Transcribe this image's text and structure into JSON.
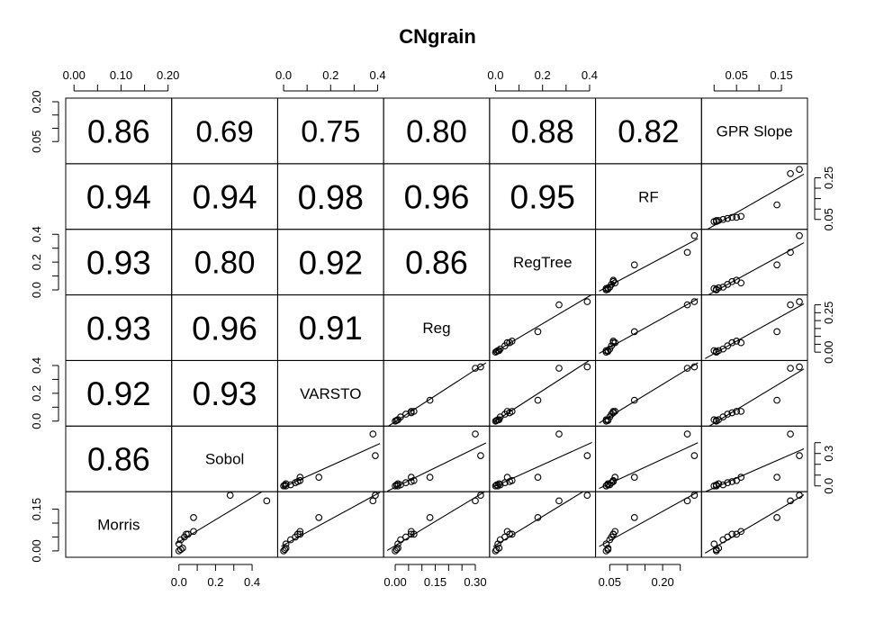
{
  "chart_data": {
    "type": "scatter-matrix",
    "title": "CNgrain",
    "variables": [
      "Morris",
      "Sobol",
      "VARSTO",
      "Reg",
      "RegTree",
      "RF",
      "GPR Slope"
    ],
    "correlations": [
      [
        null,
        null,
        null,
        null,
        null,
        null,
        null
      ],
      [
        0.86,
        null,
        null,
        null,
        null,
        null,
        null
      ],
      [
        0.92,
        0.93,
        null,
        null,
        null,
        null,
        null
      ],
      [
        0.93,
        0.96,
        0.91,
        null,
        null,
        null,
        null
      ],
      [
        0.93,
        0.8,
        0.92,
        0.86,
        null,
        null,
        null
      ],
      [
        0.94,
        0.94,
        0.98,
        0.96,
        0.95,
        null,
        null
      ],
      [
        0.86,
        0.69,
        0.75,
        0.8,
        0.88,
        0.82,
        null
      ]
    ],
    "correlation_labels": [
      [
        "",
        "",
        "",
        "",
        "",
        "",
        ""
      ],
      [
        "0.86",
        "",
        "",
        "",
        "",
        "",
        ""
      ],
      [
        "0.92",
        "0.93",
        "",
        "",
        "",
        "",
        ""
      ],
      [
        "0.93",
        "0.96",
        "0.91",
        "",
        "",
        "",
        ""
      ],
      [
        "0.93",
        "0.80",
        "0.92",
        "0.86",
        "",
        "",
        ""
      ],
      [
        "0.94",
        "0.94",
        "0.98",
        "0.96",
        "0.95",
        "",
        ""
      ],
      [
        "0.86",
        "0.69",
        "0.75",
        "0.80",
        "0.88",
        "0.82",
        ""
      ]
    ],
    "ranges": [
      [
        -0.01,
        0.2
      ],
      [
        -0.02,
        0.52
      ],
      [
        -0.01,
        0.41
      ],
      [
        -0.03,
        0.34
      ],
      [
        -0.01,
        0.41
      ],
      [
        0.02,
        0.3
      ],
      [
        -0.02,
        0.2
      ]
    ],
    "observations": [
      [
        0.0,
        0.0,
        0.0,
        0.0,
        0.0,
        0.04,
        0.005
      ],
      [
        0.005,
        0.01,
        0.005,
        0.005,
        0.005,
        0.045,
        0.005
      ],
      [
        0.01,
        0.02,
        0.01,
        0.01,
        0.015,
        0.045,
        0.01
      ],
      [
        0.025,
        0.0,
        0.01,
        0.01,
        0.01,
        0.04,
        0.0
      ],
      [
        0.04,
        0.01,
        0.03,
        0.02,
        0.02,
        0.05,
        0.02
      ],
      [
        0.05,
        0.03,
        0.05,
        0.04,
        0.04,
        0.055,
        0.03
      ],
      [
        0.06,
        0.04,
        0.06,
        0.06,
        0.06,
        0.06,
        0.04
      ],
      [
        0.06,
        0.05,
        0.07,
        0.07,
        0.07,
        0.06,
        0.05
      ],
      [
        0.07,
        0.08,
        0.07,
        0.06,
        0.05,
        0.065,
        0.06
      ],
      [
        0.12,
        0.08,
        0.15,
        0.13,
        0.18,
        0.12,
        0.14
      ],
      [
        0.18,
        0.48,
        0.38,
        0.3,
        0.27,
        0.27,
        0.17
      ],
      [
        0.2,
        0.28,
        0.39,
        0.32,
        0.39,
        0.29,
        0.19
      ]
    ],
    "ticks": {
      "top": [
        {
          "var": 0,
          "values": [
            0.0,
            0.05,
            0.1,
            0.15,
            0.2
          ],
          "labels": [
            "0.00",
            "",
            "0.10",
            "",
            "0.20"
          ]
        },
        {
          "var": 2,
          "values": [
            0.0,
            0.1,
            0.2,
            0.3,
            0.4
          ],
          "labels": [
            "0.0",
            "",
            "0.2",
            "",
            "0.4"
          ]
        },
        {
          "var": 4,
          "values": [
            0.0,
            0.1,
            0.2,
            0.3,
            0.4
          ],
          "labels": [
            "0.0",
            "",
            "0.2",
            "",
            "0.4"
          ]
        },
        {
          "var": 6,
          "values": [
            0.0,
            0.05,
            0.1,
            0.15
          ],
          "labels": [
            "",
            "0.05",
            "",
            "0.15"
          ]
        }
      ],
      "bottom": [
        {
          "var": 1,
          "values": [
            0.0,
            0.1,
            0.2,
            0.3,
            0.4
          ],
          "labels": [
            "0.0",
            "",
            "0.2",
            "",
            "0.4"
          ]
        },
        {
          "var": 3,
          "values": [
            0.0,
            0.05,
            0.1,
            0.15,
            0.2,
            0.25,
            0.3
          ],
          "labels": [
            "0.00",
            "",
            "",
            "0.15",
            "",
            "",
            "0.30"
          ]
        },
        {
          "var": 5,
          "values": [
            0.05,
            0.1,
            0.15,
            0.2,
            0.25
          ],
          "labels": [
            "0.05",
            "",
            "",
            "0.20",
            ""
          ]
        }
      ],
      "left": [
        {
          "var": 0,
          "values": [
            0.0,
            0.05,
            0.1,
            0.15
          ],
          "labels": [
            "0.00",
            "",
            "",
            "0.15"
          ]
        },
        {
          "var": 2,
          "values": [
            0.0,
            0.1,
            0.2,
            0.3,
            0.4
          ],
          "labels": [
            "0.0",
            "",
            "0.2",
            "",
            "0.4"
          ]
        },
        {
          "var": 4,
          "values": [
            0.0,
            0.1,
            0.2,
            0.3,
            0.4
          ],
          "labels": [
            "0.0",
            "",
            "0.2",
            "",
            "0.4"
          ]
        },
        {
          "var": 6,
          "values": [
            0.05,
            0.1,
            0.15,
            0.2
          ],
          "labels": [
            "0.05",
            "",
            "",
            "0.20"
          ]
        }
      ],
      "right": [
        {
          "var": 1,
          "values": [
            0.0,
            0.1,
            0.2,
            0.3,
            0.4
          ],
          "labels": [
            "0.0",
            "",
            "",
            "0.3",
            ""
          ]
        },
        {
          "var": 3,
          "values": [
            0.0,
            0.05,
            0.1,
            0.15,
            0.2,
            0.25,
            0.3
          ],
          "labels": [
            "0.00",
            "",
            "",
            "",
            "",
            "0.25",
            ""
          ]
        },
        {
          "var": 5,
          "values": [
            0.05,
            0.1,
            0.15,
            0.2,
            0.25
          ],
          "labels": [
            "0.05",
            "",
            "",
            "",
            "0.25"
          ]
        }
      ]
    },
    "diagonal_order": "bottom-left to top-right",
    "upper_panels": "scatter with fitted line",
    "lower_panels": "correlation coefficient"
  }
}
